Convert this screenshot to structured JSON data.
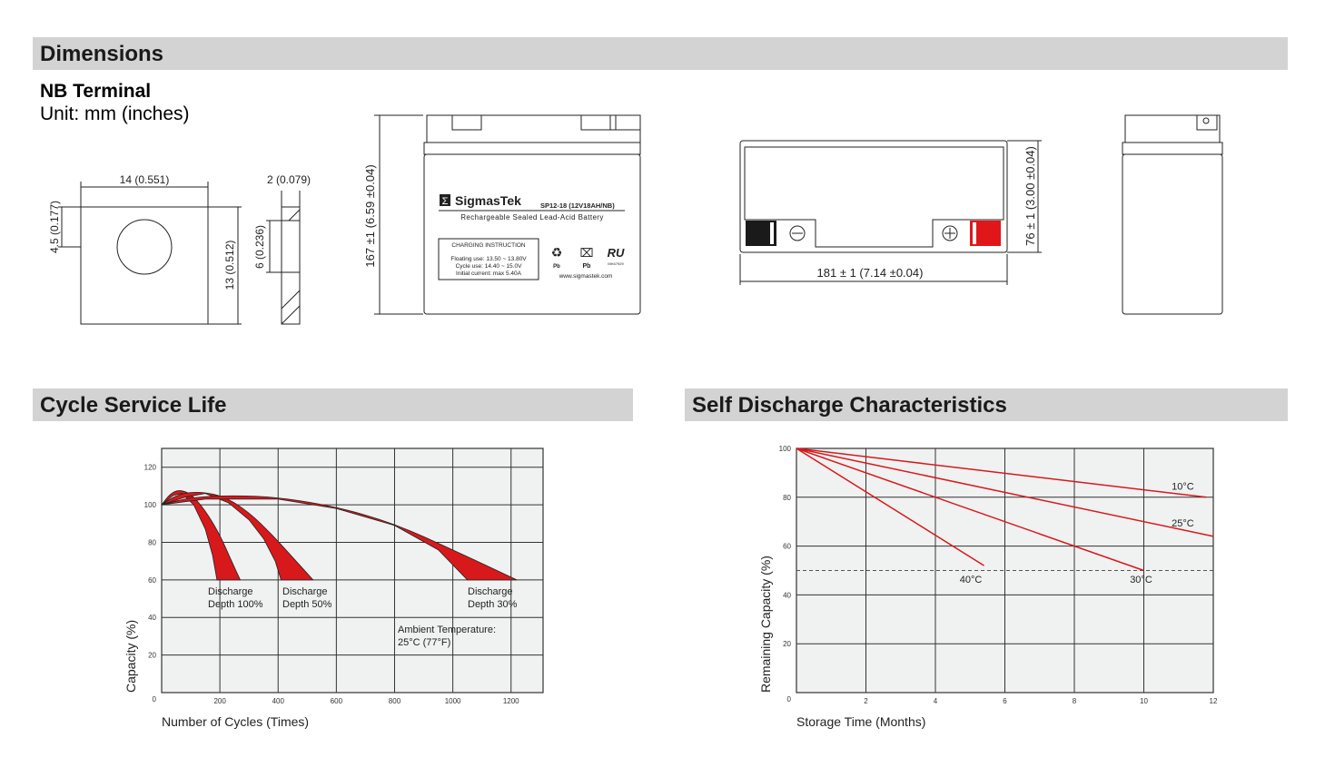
{
  "sections": {
    "dimensions": "Dimensions",
    "cycle_life": "Cycle Service Life",
    "self_discharge": "Self Discharge Characteristics"
  },
  "terminal": {
    "title": "NB Terminal",
    "unit": "Unit: mm (inches)"
  },
  "dimension_labels": {
    "terminal_width": "14 (0.551)",
    "terminal_offset": "4.5 (0.177)",
    "terminal_height": "13 (0.512)",
    "terminal_thickness": "2 (0.079)",
    "terminal_side": "6 (0.236)",
    "battery_height": "167 ±1 (6.59 ±0.04)",
    "battery_length": "181 ± 1 (7.14 ±0.04)",
    "battery_width": "76 ± 1 (3.00 ±0.04)"
  },
  "battery_label": {
    "brand": "SigmasTek",
    "model": "SP12-18 (12V18AH/NB)",
    "description": "Rechargeable Sealed Lead-Acid Battery",
    "charging_title": "CHARGING INSTRUCTION",
    "floating": "Floating use: 13.50 ~ 13.80V",
    "cycle": "Cycle use: 14.40 ~ 15.0V",
    "initial": "Initial current: max 5.40A",
    "pb1": "Pb",
    "pb2": "Pb",
    "ul_code": "MH47929",
    "website": "www.sigmastek.com"
  },
  "colors": {
    "accent_red": "#d7191c",
    "header_bar": "#d3d3d3",
    "plot_bg": "#f0f1f1"
  },
  "chart_data": [
    {
      "type": "area",
      "title": "Cycle Service Life",
      "xlabel": "Number of Cycles (Times)",
      "ylabel": "Capacity (%)",
      "xlim": [
        0,
        1310
      ],
      "ylim": [
        0,
        130
      ],
      "xticks": [
        200,
        400,
        600,
        800,
        1000,
        1200
      ],
      "yticks": [
        0,
        20,
        40,
        60,
        80,
        100,
        120
      ],
      "grid": true,
      "annotations": {
        "dod100": [
          "Discharge",
          "Depth 100%"
        ],
        "dod50": [
          "Discharge",
          "Depth 50%"
        ],
        "dod30": [
          "Discharge",
          "Depth 30%"
        ],
        "ambient": [
          "Ambient Temperature:",
          "25°C (77°F)"
        ]
      },
      "bands": [
        {
          "outer": [
            [
              0,
              100
            ],
            [
              30,
              106
            ],
            [
              60,
              108
            ],
            [
              100,
              106
            ],
            [
              150,
              97
            ],
            [
              200,
              84
            ],
            [
              240,
              70
            ],
            [
              270,
              60
            ]
          ],
          "inner": [
            [
              0,
              100
            ],
            [
              40,
              105
            ],
            [
              70,
              106
            ],
            [
              110,
              100
            ],
            [
              150,
              87
            ],
            [
              175,
              73
            ],
            [
              190,
              60
            ]
          ]
        },
        {
          "outer": [
            [
              0,
              100
            ],
            [
              60,
              106
            ],
            [
              140,
              107
            ],
            [
              220,
              104
            ],
            [
              300,
              96
            ],
            [
              380,
              84
            ],
            [
              450,
              72
            ],
            [
              520,
              60
            ]
          ],
          "inner": [
            [
              0,
              100
            ],
            [
              80,
              104
            ],
            [
              150,
              106
            ],
            [
              230,
              101
            ],
            [
              300,
              92
            ],
            [
              350,
              82
            ],
            [
              390,
              70
            ],
            [
              410,
              60
            ]
          ]
        },
        {
          "outer": [
            [
              0,
              100
            ],
            [
              100,
              104
            ],
            [
              250,
              105
            ],
            [
              400,
              104
            ],
            [
              600,
              99
            ],
            [
              800,
              90
            ],
            [
              1000,
              76
            ],
            [
              1220,
              60
            ]
          ],
          "inner": [
            [
              0,
              100
            ],
            [
              150,
              103
            ],
            [
              400,
              103
            ],
            [
              600,
              98
            ],
            [
              800,
              89
            ],
            [
              950,
              76
            ],
            [
              1050,
              60
            ]
          ]
        }
      ]
    },
    {
      "type": "line",
      "title": "Self Discharge Characteristics",
      "xlabel": "Storage Time (Months)",
      "ylabel": "Remaining Capacity (%)",
      "xlim": [
        0,
        12
      ],
      "ylim": [
        0,
        100
      ],
      "xticks": [
        2,
        4,
        6,
        8,
        10,
        12
      ],
      "yticks": [
        0,
        20,
        40,
        60,
        80,
        100
      ],
      "grid": true,
      "reference_line": 50,
      "series": [
        {
          "name": "10°C",
          "points": [
            [
              0,
              100
            ],
            [
              11.8,
              80
            ]
          ]
        },
        {
          "name": "25°C",
          "points": [
            [
              0,
              100
            ],
            [
              12,
              64
            ]
          ]
        },
        {
          "name": "30°C",
          "points": [
            [
              0,
              100
            ],
            [
              10,
              50
            ]
          ]
        },
        {
          "name": "40°C",
          "points": [
            [
              0,
              100
            ],
            [
              5.4,
              52
            ]
          ]
        }
      ]
    }
  ]
}
